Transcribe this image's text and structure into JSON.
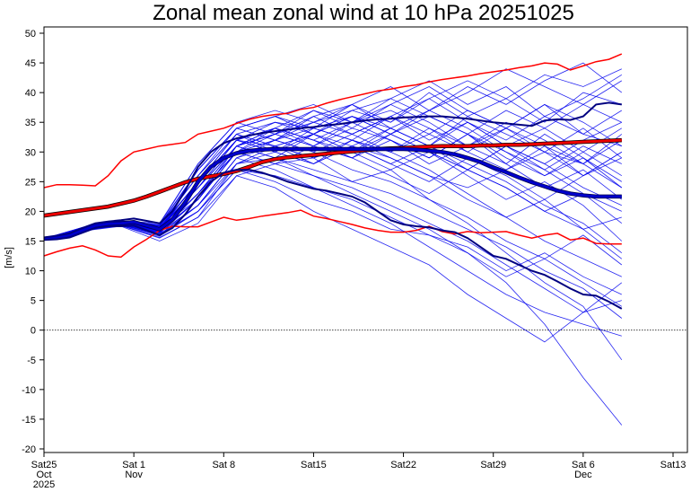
{
  "chart_data": {
    "type": "line",
    "title": "Zonal mean zonal wind at 10 hPa 20251025",
    "xlabel": "",
    "ylabel": "[m/s]",
    "ylim": [
      -20,
      50
    ],
    "yticks": [
      50,
      45,
      40,
      35,
      30,
      25,
      20,
      15,
      10,
      5,
      0,
      -5,
      -10,
      -15,
      -20
    ],
    "x_start_date": "2025-10-25",
    "x_unit": "days since 2025-10-25",
    "xlim": [
      0,
      49
    ],
    "xticks": [
      {
        "day": 0,
        "lines": [
          "Sat25",
          "Oct",
          "2025"
        ]
      },
      {
        "day": 7,
        "lines": [
          "Sat 1",
          "Nov"
        ]
      },
      {
        "day": 14,
        "lines": [
          "Sat 8"
        ]
      },
      {
        "day": 21,
        "lines": [
          "Sat15"
        ]
      },
      {
        "day": 28,
        "lines": [
          "Sat22"
        ]
      },
      {
        "day": 35,
        "lines": [
          "Sat29"
        ]
      },
      {
        "day": 42,
        "lines": [
          "Sat 6",
          "Dec"
        ]
      },
      {
        "day": 49,
        "lines": [
          "Sat13"
        ]
      }
    ],
    "grid": false,
    "zero_line": {
      "value": 0,
      "style": "dotted",
      "color": "#000000"
    },
    "colors": {
      "members": "#0000ee",
      "ensemble_mean": "#0000cc",
      "quantiles": "#000080",
      "climatology": "#ff0000",
      "climatology_mean": "#cc0000"
    },
    "series": [
      {
        "name": "climatology-max",
        "role": "clim",
        "x_step": 1,
        "values": [
          24,
          24.5,
          24.5,
          24.4,
          24.3,
          26,
          28.5,
          30,
          30.5,
          31,
          31.3,
          31.6,
          33,
          33.5,
          34,
          34.8,
          35.5,
          36,
          36.3,
          36.5,
          37.2,
          37.5,
          38.2,
          38.8,
          39.3,
          39.8,
          40.3,
          40.6,
          41,
          41.3,
          41.8,
          42.2,
          42.5,
          42.8,
          43.2,
          43.5,
          43.8,
          44.2,
          44.5,
          45,
          44.8,
          43.8,
          44.5,
          45.2,
          45.6,
          46.5
        ]
      },
      {
        "name": "climatology-min",
        "role": "clim",
        "x_step": 1,
        "values": [
          12.5,
          13.2,
          13.8,
          14.2,
          13.5,
          12.5,
          12.3,
          14,
          15.3,
          16.8,
          17.5,
          17.4,
          17.4,
          18.2,
          19,
          18.5,
          18.8,
          19.2,
          19.5,
          19.8,
          20.2,
          19.2,
          18.8,
          18.3,
          17.8,
          17.2,
          16.8,
          16.5,
          16.5,
          16.8,
          17.5,
          16.6,
          16.2,
          16.6,
          16.4,
          16.5,
          16.6,
          16,
          15.5,
          16,
          16.3,
          15.2,
          15.5,
          14.6,
          14.5,
          14.5
        ]
      },
      {
        "name": "climatology-mean",
        "role": "climmean",
        "x_step": 1,
        "values": [
          19.3,
          19.6,
          19.9,
          20.2,
          20.5,
          20.8,
          21.3,
          21.8,
          22.5,
          23.3,
          24.1,
          24.9,
          25.5,
          25.9,
          26.3,
          26.8,
          27.5,
          28.3,
          28.8,
          29.1,
          29.3,
          29.5,
          29.7,
          29.9,
          30.1,
          30.3,
          30.5,
          30.6,
          30.7,
          30.8,
          30.9,
          31,
          31,
          31,
          31.1,
          31.1,
          31.2,
          31.2,
          31.3,
          31.4,
          31.5,
          31.6,
          31.7,
          31.8,
          31.9,
          32
        ]
      },
      {
        "name": "ensemble-mean",
        "role": "mean",
        "x_step": 1,
        "values": [
          15.4,
          15.6,
          16,
          16.8,
          17.6,
          17.9,
          18,
          18.2,
          17.6,
          17,
          18.6,
          21.5,
          25,
          27.5,
          29,
          29.8,
          30.2,
          30.4,
          30.5,
          30.5,
          30.5,
          30.5,
          30.5,
          30.5,
          30.5,
          30.5,
          30.5,
          30.5,
          30.5,
          30.4,
          30.2,
          30,
          29.6,
          29,
          28.3,
          27.4,
          26.6,
          25.7,
          24.9,
          24.2,
          23.5,
          23,
          22.7,
          22.5,
          22.5,
          22.5
        ]
      },
      {
        "name": "ensemble-upper",
        "role": "quant",
        "x_step": 1,
        "values": [
          15.6,
          15.9,
          16.3,
          17.2,
          18,
          18.3,
          18.5,
          18.8,
          18.4,
          18,
          20,
          23.5,
          27.5,
          30,
          31.5,
          32.3,
          32.8,
          33.2,
          33.5,
          33.8,
          34,
          34.2,
          34.5,
          34.7,
          35,
          35.3,
          35.5,
          35.6,
          35.8,
          35.9,
          36,
          36,
          35.8,
          35.6,
          35.3,
          35,
          34.8,
          34.6,
          34.4,
          35.3,
          35.5,
          35.4,
          36,
          38,
          38.3,
          38
        ]
      },
      {
        "name": "ensemble-lower",
        "role": "quant",
        "x_step": 1,
        "values": [
          15.2,
          15.3,
          15.6,
          16.4,
          17.2,
          17.5,
          17.5,
          17.6,
          16.8,
          16,
          17.2,
          19.5,
          22.5,
          25,
          26.5,
          27,
          27,
          26.5,
          25.8,
          25,
          24.4,
          23.8,
          23.5,
          23,
          22.5,
          21.5,
          20,
          18.5,
          17.8,
          17.5,
          17.3,
          16.8,
          16.5,
          15.5,
          14,
          12.5,
          12,
          11,
          10,
          9.3,
          8.2,
          7,
          6,
          5.8,
          4.8,
          3.6
        ]
      }
    ],
    "members_x_step": 3,
    "members": [
      [
        15.4,
        17,
        18,
        17.5,
        22,
        31,
        33,
        35,
        37,
        35,
        40,
        36,
        39,
        43,
        41,
        44
      ],
      [
        15.4,
        17.2,
        18.2,
        16,
        25,
        33,
        30,
        28,
        31,
        29,
        26,
        24,
        27,
        30,
        28,
        32
      ],
      [
        15.4,
        16.8,
        17.6,
        15.5,
        19,
        28,
        31,
        33,
        30,
        34,
        31,
        36,
        33,
        30,
        34,
        29
      ],
      [
        15.4,
        17.1,
        18.3,
        17,
        27,
        34,
        36,
        33,
        37,
        39,
        42,
        38,
        41,
        36,
        39,
        43
      ],
      [
        15.4,
        16.9,
        17.9,
        16.5,
        21,
        29,
        27,
        24,
        21,
        18,
        14,
        10,
        6,
        3,
        1,
        -1
      ],
      [
        15.4,
        17,
        18.1,
        17.2,
        24,
        32,
        34,
        31,
        35,
        32,
        29,
        33,
        28,
        24,
        27,
        22
      ],
      [
        15.4,
        17.3,
        18.4,
        18,
        28,
        35,
        33,
        37,
        34,
        38,
        35,
        31,
        34,
        38,
        33,
        37
      ],
      [
        15.4,
        16.7,
        17.5,
        15,
        18,
        26,
        28,
        29,
        25,
        27,
        22,
        19,
        15,
        12,
        16,
        11
      ],
      [
        15.4,
        17,
        18,
        16.8,
        23,
        31,
        29,
        33,
        31,
        28,
        31,
        27,
        24,
        20,
        23,
        18
      ],
      [
        15.4,
        17.2,
        18.2,
        17.4,
        26,
        33,
        35,
        34,
        38,
        41,
        37,
        40,
        44,
        41,
        38,
        42
      ],
      [
        15.4,
        16.9,
        17.7,
        16.2,
        20,
        27,
        25,
        22,
        20,
        17,
        16,
        13,
        8,
        1,
        -8,
        -16
      ],
      [
        15.4,
        17.1,
        18,
        17,
        25,
        32,
        31,
        28,
        32,
        30,
        34,
        30,
        27,
        31,
        26,
        30
      ],
      [
        15.4,
        17,
        17.9,
        16.6,
        22,
        30,
        33,
        36,
        33,
        30,
        27,
        23,
        19,
        22,
        17,
        12
      ],
      [
        15.4,
        16.8,
        17.8,
        16,
        21,
        29,
        32,
        30,
        33,
        36,
        32,
        35,
        31,
        28,
        32,
        35
      ],
      [
        15.4,
        17.2,
        18.3,
        17.6,
        27,
        34,
        32,
        35,
        33,
        36,
        39,
        35,
        31,
        34,
        30,
        26
      ],
      [
        15.4,
        17.1,
        18.1,
        17.3,
        24,
        31,
        29,
        26,
        24,
        21,
        18,
        15,
        11,
        7,
        3,
        5
      ],
      [
        15.4,
        16.9,
        17.8,
        16.4,
        23,
        30,
        34,
        32,
        29,
        33,
        30,
        27,
        31,
        27,
        23,
        20
      ],
      [
        15.4,
        17.3,
        18.4,
        17.8,
        28,
        35,
        37,
        35,
        38,
        34,
        37,
        41,
        38,
        42,
        45,
        40
      ],
      [
        15.4,
        16.8,
        17.6,
        15.6,
        19,
        26,
        24,
        20,
        17,
        14,
        11,
        6,
        2,
        -2,
        3,
        8
      ],
      [
        15.4,
        17,
        18,
        17,
        24,
        31,
        33,
        31,
        34,
        32,
        28,
        31,
        35,
        32,
        28,
        24
      ],
      [
        15.4,
        17.1,
        18.2,
        17.2,
        25,
        32,
        30,
        33,
        30,
        27,
        30,
        26,
        22,
        25,
        21,
        15
      ],
      [
        15.4,
        16.9,
        17.8,
        16.3,
        22,
        30,
        32,
        34,
        36,
        33,
        37,
        34,
        30,
        27,
        31,
        28
      ],
      [
        15.4,
        17.2,
        18.3,
        17.6,
        26,
        33,
        31,
        29,
        31,
        34,
        31,
        28,
        25,
        21,
        18,
        13
      ],
      [
        15.4,
        17,
        18,
        16.8,
        23,
        31,
        34,
        37,
        35,
        39,
        36,
        33,
        37,
        34,
        38,
        35
      ],
      [
        15.4,
        16.8,
        17.7,
        16,
        20,
        28,
        29,
        27,
        25,
        23,
        20,
        17,
        14,
        10,
        7,
        2
      ],
      [
        15.4,
        17.1,
        18.1,
        17.1,
        25,
        32,
        35,
        33,
        36,
        34,
        31,
        35,
        32,
        36,
        33,
        31
      ],
      [
        15.4,
        17,
        17.9,
        16.7,
        22,
        30,
        28,
        31,
        29,
        26,
        23,
        27,
        24,
        20,
        17,
        19
      ],
      [
        15.4,
        17.2,
        18.2,
        17.5,
        26,
        34,
        36,
        34,
        32,
        36,
        33,
        30,
        34,
        31,
        28,
        33
      ],
      [
        15.4,
        16.9,
        17.8,
        16.4,
        21,
        29,
        31,
        29,
        32,
        29,
        26,
        22,
        19,
        15,
        12,
        9
      ],
      [
        15.4,
        17.1,
        18.1,
        17.2,
        24,
        32,
        30,
        34,
        32,
        30,
        33,
        37,
        34,
        30,
        26,
        30
      ],
      [
        15.4,
        17,
        18,
        16.9,
        23,
        30,
        32,
        30,
        27,
        25,
        22,
        18,
        13,
        8,
        4,
        -5
      ],
      [
        15.4,
        16.9,
        17.9,
        16.5,
        22,
        31,
        34,
        32,
        35,
        37,
        34,
        31,
        28,
        33,
        29,
        25
      ],
      [
        15.4,
        17.2,
        18.3,
        17.7,
        27,
        34,
        32,
        36,
        38,
        35,
        39,
        42,
        39,
        35,
        40,
        38
      ],
      [
        15.4,
        16.8,
        17.6,
        15.8,
        20,
        27,
        26,
        24,
        22,
        19,
        16,
        14,
        10,
        13,
        9,
        6
      ],
      [
        15.4,
        17,
        18.1,
        17,
        24,
        31,
        33,
        31,
        29,
        32,
        29,
        33,
        30,
        26,
        29,
        24
      ],
      [
        15.4,
        17.1,
        18.2,
        17.3,
        25,
        33,
        31,
        33,
        36,
        33,
        30,
        27,
        31,
        28,
        24,
        21
      ],
      [
        15.4,
        16.9,
        17.7,
        16.1,
        21,
        28,
        30,
        28,
        31,
        28,
        25,
        29,
        26,
        22,
        26,
        29
      ],
      [
        15.4,
        17.2,
        18.3,
        17.6,
        27,
        34,
        36,
        38,
        35,
        38,
        41,
        37,
        34,
        38,
        35,
        31
      ],
      [
        15.4,
        17,
        18,
        16.7,
        23,
        30,
        28,
        26,
        23,
        20,
        17,
        13,
        9,
        12,
        8,
        4
      ],
      [
        15.4,
        17.1,
        18.1,
        17.1,
        25,
        32,
        34,
        32,
        30,
        33,
        36,
        33,
        29,
        26,
        30,
        34
      ]
    ]
  }
}
